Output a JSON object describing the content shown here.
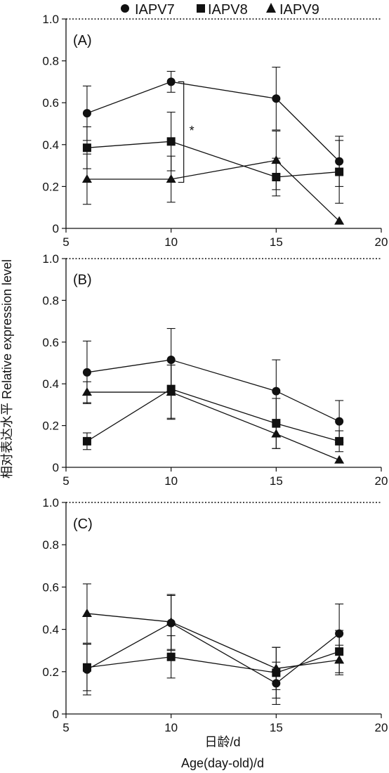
{
  "figure": {
    "ylabel": "相对表达水平 Relative expression level",
    "xlabel_cn": "日龄/d",
    "xlabel_en": "Age(day-old)/d",
    "series_style": [
      {
        "name": "IAPV7",
        "marker": "circle"
      },
      {
        "name": "IAPV8",
        "marker": "square"
      },
      {
        "name": "IAPV9",
        "marker": "triangle"
      }
    ],
    "line_color": "#111111",
    "marker_color": "#111111"
  },
  "chart_data": [
    {
      "type": "line",
      "panel_label": "(A)",
      "xlim": [
        5,
        20
      ],
      "ylim": [
        0,
        1.0
      ],
      "xticks": [
        "5",
        "10",
        "15",
        "20"
      ],
      "yticks": [
        "0",
        "0.2",
        "0.4",
        "0.6",
        "0.8",
        "1.0"
      ],
      "x": [
        6,
        10,
        15,
        18
      ],
      "series": [
        {
          "name": "IAPV7",
          "values": [
            0.55,
            0.7,
            0.62,
            0.32
          ],
          "err": [
            0.13,
            0.05,
            0.15,
            0.12
          ]
        },
        {
          "name": "IAPV8",
          "values": [
            0.385,
            0.415,
            0.245,
            0.27
          ],
          "err": [
            0.1,
            0.14,
            0.09,
            0.15
          ]
        },
        {
          "name": "IAPV9",
          "values": [
            0.235,
            0.235,
            0.325,
            0.035
          ],
          "err": [
            0.12,
            0.11,
            0.14,
            0.0
          ]
        }
      ],
      "annotation": {
        "text": "*",
        "x_data": 10,
        "from_value": 0.7,
        "to_value": 0.22
      }
    },
    {
      "type": "line",
      "panel_label": "(B)",
      "xlim": [
        5,
        20
      ],
      "ylim": [
        0,
        1.0
      ],
      "xticks": [
        "5",
        "10",
        "15",
        "20"
      ],
      "yticks": [
        "0",
        "0.2",
        "0.4",
        "0.6",
        "0.8",
        "1.0"
      ],
      "x": [
        6,
        10,
        15,
        18
      ],
      "series": [
        {
          "name": "IAPV7",
          "values": [
            0.455,
            0.515,
            0.365,
            0.22
          ],
          "err": [
            0.15,
            0.15,
            0.15,
            0.1
          ]
        },
        {
          "name": "IAPV8",
          "values": [
            0.125,
            0.375,
            0.21,
            0.125
          ],
          "err": [
            0.04,
            0.14,
            0.12,
            0.05
          ]
        },
        {
          "name": "IAPV9",
          "values": [
            0.36,
            0.36,
            0.16,
            0.035
          ],
          "err": [
            0.05,
            0.13,
            0.07,
            0.0
          ]
        }
      ]
    },
    {
      "type": "line",
      "panel_label": "(C)",
      "xlim": [
        5,
        20
      ],
      "ylim": [
        0,
        1.0
      ],
      "xticks": [
        "5",
        "10",
        "15",
        "20"
      ],
      "yticks": [
        "0",
        "0.2",
        "0.4",
        "0.6",
        "0.8",
        "1.0"
      ],
      "x": [
        6,
        10,
        15,
        18
      ],
      "series": [
        {
          "name": "IAPV7",
          "values": [
            0.21,
            0.43,
            0.145,
            0.38
          ],
          "err": [
            0.12,
            0.13,
            0.1,
            0.14
          ]
        },
        {
          "name": "IAPV8",
          "values": [
            0.22,
            0.27,
            0.195,
            0.295
          ],
          "err": [
            0.11,
            0.1,
            0.12,
            0.1
          ]
        },
        {
          "name": "IAPV9",
          "values": [
            0.475,
            0.435,
            0.215,
            0.255
          ],
          "err": [
            0.14,
            0.13,
            0.1,
            0.07
          ]
        }
      ]
    }
  ]
}
